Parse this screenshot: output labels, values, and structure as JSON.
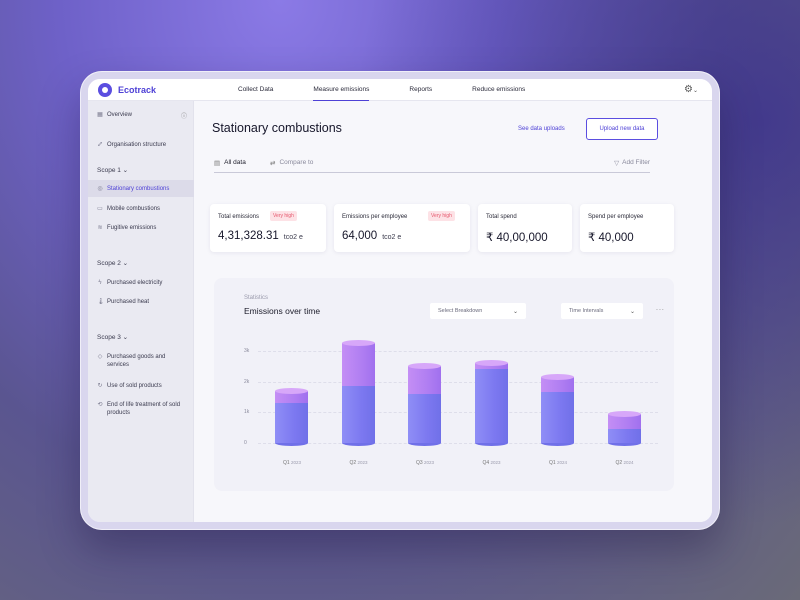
{
  "app": {
    "name": "Ecotrack"
  },
  "nav": [
    "Collect Data",
    "Measure emissions",
    "Reports",
    "Reduce emissions"
  ],
  "nav_active": "Measure emissions",
  "sidebar": {
    "overview": "Overview",
    "org": "Organisation structure",
    "scope1": {
      "label": "Scope 1",
      "items": [
        "Stationary combustions",
        "Mobile combustions",
        "Fugitive emissions"
      ]
    },
    "scope2": {
      "label": "Scope 2",
      "items": [
        "Purchased electricity",
        "Purchased heat"
      ]
    },
    "scope3": {
      "label": "Scope 3",
      "items": [
        "Purchased goods and services",
        "Use of sold products",
        "End of life treatment of sold products"
      ]
    }
  },
  "page": {
    "title": "Stationary combustions",
    "see_uploads": "See data uploads",
    "upload_btn": "Upload new data",
    "tabs": {
      "all": "All data",
      "compare": "Compare to",
      "filter": "Add Filter"
    }
  },
  "cards": [
    {
      "label": "Total emissions",
      "badge": "Very high",
      "value": "4,31,328.31",
      "unit": "tco2 e"
    },
    {
      "label": "Emissions per employee",
      "badge": "Very high",
      "value": "64,000",
      "unit": "tco2 e"
    },
    {
      "label": "Total spend",
      "value": "₹ 40,00,000"
    },
    {
      "label": "Spend per employee",
      "value": "₹ 40,000"
    }
  ],
  "chart": {
    "stat_label": "Statistics",
    "title": "Emissions over time",
    "breakdown": "Select Breakdown",
    "intervals": "Time Intervals",
    "more": "..."
  },
  "colors": {
    "accent": "#4e41d6",
    "bar_lower": "#7c78f0",
    "bar_upper": "#b07ef2"
  },
  "chart_data": {
    "type": "bar",
    "categories": [
      "Q1 2023",
      "Q2 2023",
      "Q3 2023",
      "Q4 2023",
      "Q1 2024",
      "Q2 2024"
    ],
    "category_labels": [
      [
        "Q1",
        "2023"
      ],
      [
        "Q2",
        "2023"
      ],
      [
        "Q3",
        "2023"
      ],
      [
        "Q4",
        "2023"
      ],
      [
        "Q1",
        "2024"
      ],
      [
        "Q2",
        "2024"
      ]
    ],
    "series": [
      {
        "values": [
          1300,
          1850,
          1600,
          2400,
          1650,
          450
        ]
      },
      {
        "values": [
          400,
          1400,
          900,
          200,
          500,
          500
        ]
      }
    ],
    "stacked": true,
    "yticks": [
      "0",
      "1k",
      "2k",
      "3k"
    ],
    "ylim": [
      0,
      3000
    ],
    "grid": true
  }
}
